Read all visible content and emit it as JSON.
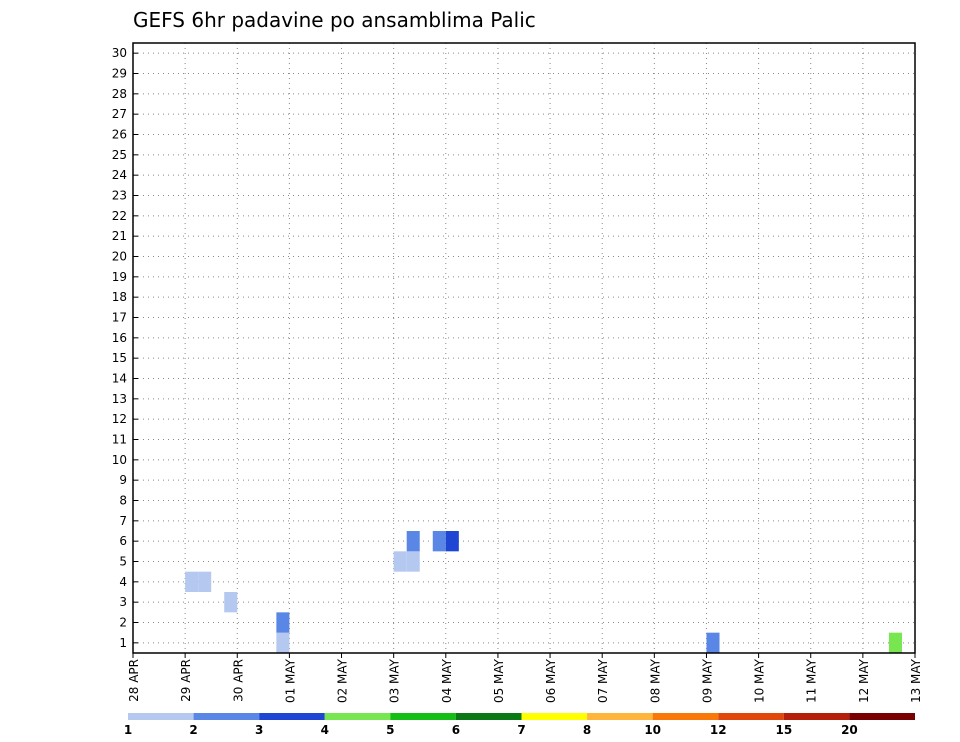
{
  "chart_data": {
    "type": "heatmap",
    "title": "GEFS 6hr padavine po ansamblima Palic",
    "xlabel": "",
    "ylabel": "",
    "x_range": [
      "28 APR",
      "13 MAY"
    ],
    "x_tick_labels": [
      "28 APR",
      "29 APR",
      "30 APR",
      "01 MAY",
      "02 MAY",
      "03 MAY",
      "04 MAY",
      "05 MAY",
      "06 MAY",
      "07 MAY",
      "08 MAY",
      "09 MAY",
      "10 MAY",
      "11 MAY",
      "12 MAY",
      "13 MAY"
    ],
    "y_tick_labels": [
      "1",
      "2",
      "3",
      "4",
      "5",
      "6",
      "7",
      "8",
      "9",
      "10",
      "11",
      "12",
      "13",
      "14",
      "15",
      "16",
      "17",
      "18",
      "19",
      "20",
      "21",
      "22",
      "23",
      "24",
      "25",
      "26",
      "27",
      "28",
      "29",
      "30"
    ],
    "y_range": [
      1,
      30
    ],
    "grid": true,
    "legend_position": "bottom",
    "legend": {
      "bounds": [
        "1",
        "2",
        "3",
        "4",
        "5",
        "6",
        "7",
        "8",
        "10",
        "12",
        "15",
        "20"
      ],
      "colors": [
        "#b4c8f0",
        "#5a87e6",
        "#1e46d2",
        "#78e650",
        "#14be14",
        "#0a7814",
        "#ffff00",
        "#ffb43c",
        "#fa780a",
        "#e1460a",
        "#b41e0a",
        "#780000"
      ]
    },
    "cells": [
      {
        "day": "30 APR 18",
        "member": 1,
        "bin": 1
      },
      {
        "day": "09 MAY 00",
        "member": 1,
        "bin": 2
      },
      {
        "day": "12 MAY 12",
        "member": 1,
        "bin": 4
      },
      {
        "day": "30 APR 18",
        "member": 2,
        "bin": 2
      },
      {
        "day": "29 APR 18",
        "member": 3,
        "bin": 1
      },
      {
        "day": "29 APR 00",
        "member": 4,
        "bin": 1
      },
      {
        "day": "29 APR 06",
        "member": 4,
        "bin": 1
      },
      {
        "day": "03 MAY 00",
        "member": 5,
        "bin": 1
      },
      {
        "day": "03 MAY 06",
        "member": 5,
        "bin": 1
      },
      {
        "day": "03 MAY 18",
        "member": 6,
        "bin": 2
      },
      {
        "day": "04 MAY 00",
        "member": 6,
        "bin": 3
      },
      {
        "day": "03 MAY 06",
        "member": 6,
        "bin": 2
      }
    ]
  }
}
